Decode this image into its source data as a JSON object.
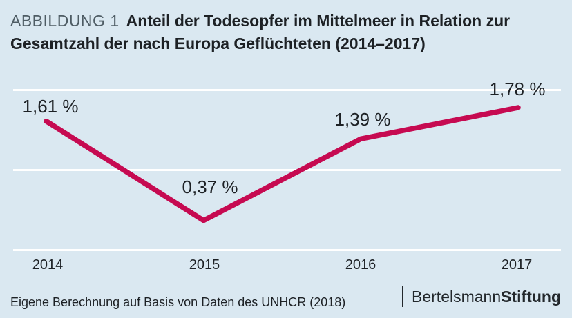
{
  "header": {
    "kicker": "ABBILDUNG 1",
    "title": "Anteil der Todesopfer im Mittelmeer in Relation zur Gesamtzahl der nach Europa Geflüchteten (2014–2017)"
  },
  "chart_data": {
    "type": "line",
    "title": "Anteil der Todesopfer im Mittelmeer in Relation zur Gesamtzahl der nach Europa Geflüchteten (2014–2017)",
    "categories": [
      "2014",
      "2015",
      "2016",
      "2017"
    ],
    "values": [
      1.61,
      0.37,
      1.39,
      1.78
    ],
    "point_labels": [
      "1,61 %",
      "0,37 %",
      "1,39 %",
      "1,78 %"
    ],
    "unit": "%",
    "ylabel": "",
    "xlabel": "",
    "ylim": [
      0,
      2
    ],
    "gridline_values": [
      0,
      1,
      2
    ],
    "grid": true,
    "legend": false
  },
  "footer": {
    "source": "Eigene Berechnung auf Basis von Daten des UNHCR (2018)",
    "logo_regular": "Bertelsmann",
    "logo_bold": "Stiftung"
  },
  "colors": {
    "background": "#dae8f1",
    "line": "#c60a51",
    "grid": "#ffffff",
    "text": "#1d2125",
    "kicker": "#4e5c64"
  }
}
